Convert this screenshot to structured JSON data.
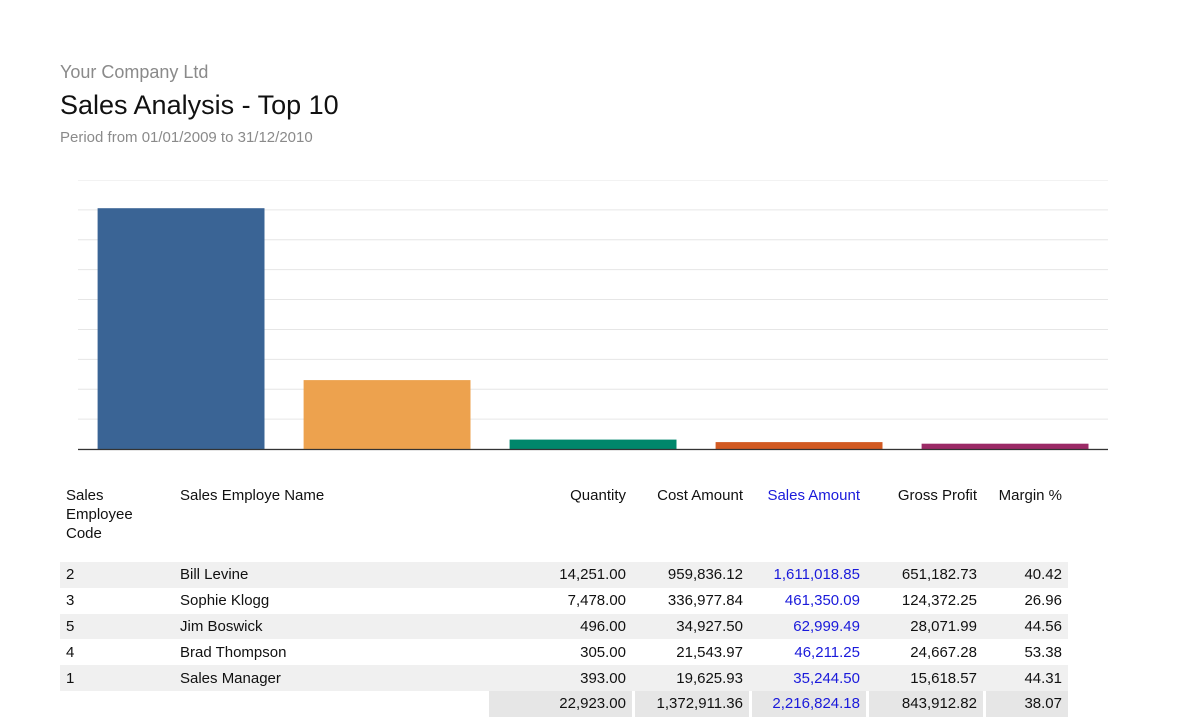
{
  "report": {
    "company": "Your Company Ltd",
    "title": "Sales Analysis - Top 10",
    "period": "Period from 01/01/2009 to 31/12/2010"
  },
  "colors": {
    "bars": [
      "#3a6495",
      "#eda24e",
      "#00876b",
      "#d25a22",
      "#9b2a66"
    ],
    "sales_text": "#1a1adb",
    "gridline": "#e6e6e6",
    "axis": "#333333"
  },
  "chart_data": {
    "type": "bar",
    "categories": [
      "Bill Levine",
      "Sophie Klogg",
      "Jim Boswick",
      "Brad Thompson",
      "Sales Manager"
    ],
    "values": [
      1611018.85,
      461350.09,
      62999.49,
      46211.25,
      35244.5
    ],
    "title": "",
    "xlabel": "",
    "ylabel": "",
    "ylim": [
      0,
      1800000
    ],
    "grid": true,
    "legend": "none"
  },
  "table": {
    "headers": {
      "code": "Sales Employee Code",
      "name": "Sales Employe Name",
      "quantity": "Quantity",
      "cost": "Cost Amount",
      "sales": "Sales Amount",
      "gross_profit": "Gross Profit",
      "margin": "Margin %"
    },
    "rows": [
      {
        "code": "2",
        "name": "Bill Levine",
        "quantity": "14,251.00",
        "cost": "959,836.12",
        "sales": "1,611,018.85",
        "gross_profit": "651,182.73",
        "margin": "40.42"
      },
      {
        "code": "3",
        "name": "Sophie Klogg",
        "quantity": "7,478.00",
        "cost": "336,977.84",
        "sales": "461,350.09",
        "gross_profit": "124,372.25",
        "margin": "26.96"
      },
      {
        "code": "5",
        "name": "Jim Boswick",
        "quantity": "496.00",
        "cost": "34,927.50",
        "sales": "62,999.49",
        "gross_profit": "28,071.99",
        "margin": "44.56"
      },
      {
        "code": "4",
        "name": "Brad Thompson",
        "quantity": "305.00",
        "cost": "21,543.97",
        "sales": "46,211.25",
        "gross_profit": "24,667.28",
        "margin": "53.38"
      },
      {
        "code": "1",
        "name": "Sales Manager",
        "quantity": "393.00",
        "cost": "19,625.93",
        "sales": "35,244.50",
        "gross_profit": "15,618.57",
        "margin": "44.31"
      }
    ],
    "totals": {
      "quantity": "22,923.00",
      "cost": "1,372,911.36",
      "sales": "2,216,824.18",
      "gross_profit": "843,912.82",
      "margin": "38.07"
    }
  }
}
